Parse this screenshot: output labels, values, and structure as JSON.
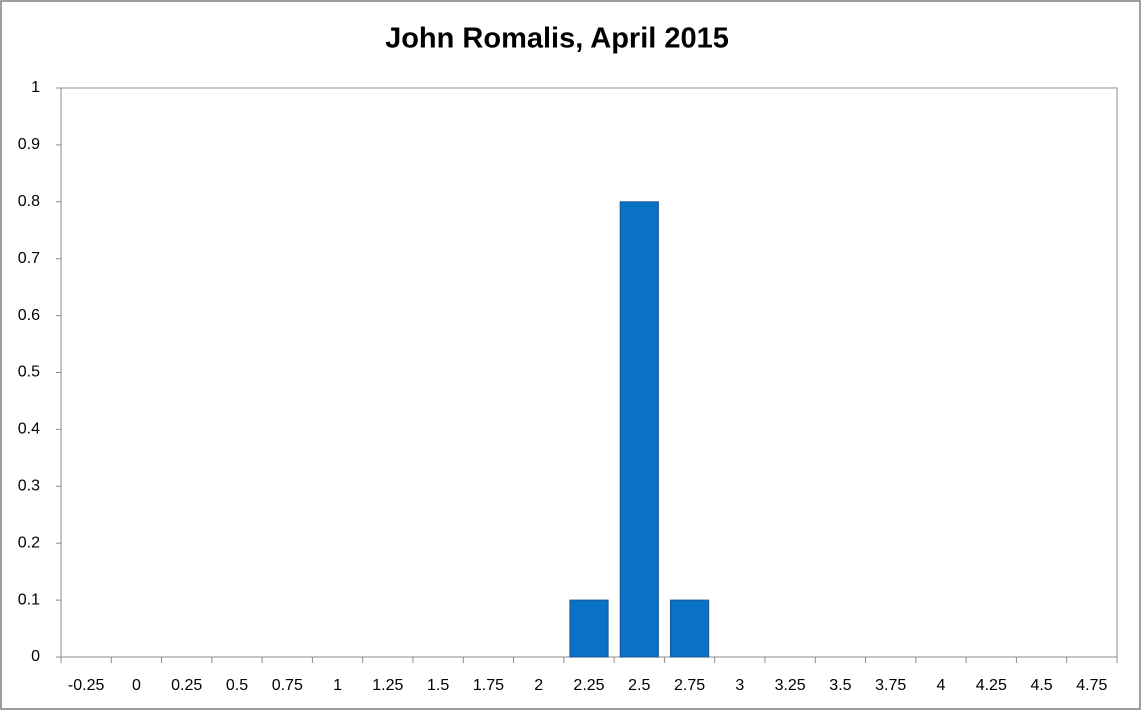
{
  "chart_data": {
    "type": "bar",
    "title": "John Romalis, April 2015",
    "categories": [
      "-0.25",
      "0",
      "0.25",
      "0.5",
      "0.75",
      "1",
      "1.25",
      "1.5",
      "1.75",
      "2",
      "2.25",
      "2.5",
      "2.75",
      "3",
      "3.25",
      "3.5",
      "3.75",
      "4",
      "4.25",
      "4.5",
      "4.75"
    ],
    "values": [
      0,
      0,
      0,
      0,
      0,
      0,
      0,
      0,
      0,
      0,
      0.1,
      0.8,
      0.1,
      0,
      0,
      0,
      0,
      0,
      0,
      0,
      0
    ],
    "color": "#0a72c6",
    "ylim": [
      0,
      1
    ],
    "yticks": [
      0,
      0.1,
      0.2,
      0.3,
      0.4,
      0.5,
      0.6,
      0.7,
      0.8,
      0.9,
      1
    ],
    "grid": false
  }
}
